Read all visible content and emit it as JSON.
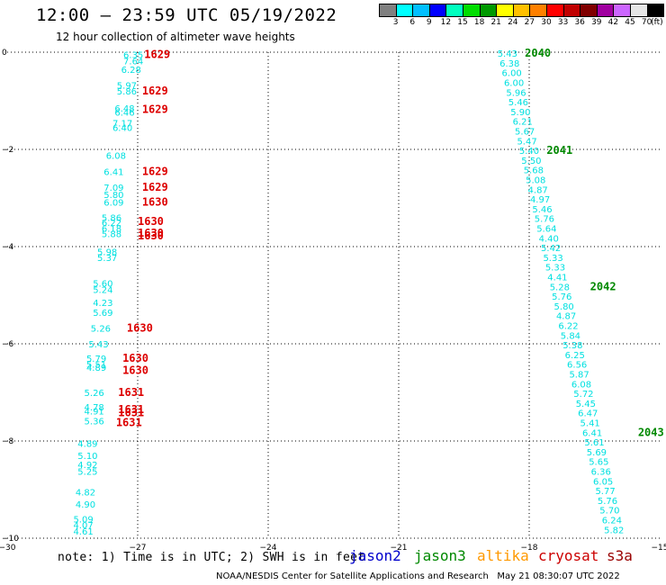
{
  "header": {
    "title": "12:00 – 23:59 UTC 05/19/2022",
    "subtitle": "12 hour collection of altimeter wave heights"
  },
  "colorbar": {
    "colors": [
      "#808080",
      "#00ffff",
      "#00bfff",
      "#0000ff",
      "#00ffbf",
      "#00dd00",
      "#009900",
      "#ffff00",
      "#ffc000",
      "#ff8000",
      "#ff0000",
      "#c00000",
      "#800000",
      "#a000a0",
      "#cc66ff",
      "#e6e6e6",
      "#000000"
    ],
    "labels": [
      "3",
      "6",
      "9",
      "12",
      "15",
      "18",
      "21",
      "24",
      "27",
      "30",
      "33",
      "36",
      "39",
      "42",
      "45",
      "70",
      "(ft)"
    ]
  },
  "axes": {
    "x_ticks": [
      "−30",
      "−27",
      "−24",
      "−21",
      "−18",
      "−15"
    ],
    "y_ticks": [
      "0",
      "−2",
      "−4",
      "−6",
      "−8",
      "−10"
    ],
    "xlim": [
      -30,
      -15
    ],
    "ylim": [
      -10,
      0
    ]
  },
  "tracks": [
    {
      "satellite": "cryosat",
      "color": "#00e0e0",
      "points": [
        {
          "lon": -27.1,
          "lat": -0.05,
          "swh": "6.35"
        },
        {
          "lon": -27.1,
          "lat": -0.18,
          "swh": "7.64"
        },
        {
          "lon": -27.15,
          "lat": -0.35,
          "swh": "6.28"
        },
        {
          "lon": -27.25,
          "lat": -0.68,
          "swh": "5.97"
        },
        {
          "lon": -27.25,
          "lat": -0.8,
          "swh": "5.86"
        },
        {
          "lon": -27.3,
          "lat": -1.15,
          "swh": "6.48"
        },
        {
          "lon": -27.3,
          "lat": -1.23,
          "swh": "6.46"
        },
        {
          "lon": -27.35,
          "lat": -1.45,
          "swh": "7.17"
        },
        {
          "lon": -27.35,
          "lat": -1.55,
          "swh": "6.40"
        },
        {
          "lon": -27.5,
          "lat": -2.12,
          "swh": "6.08"
        },
        {
          "lon": -27.55,
          "lat": -2.45,
          "swh": "6.41"
        },
        {
          "lon": -27.55,
          "lat": -2.78,
          "swh": "7.09"
        },
        {
          "lon": -27.55,
          "lat": -2.93,
          "swh": "5.80"
        },
        {
          "lon": -27.55,
          "lat": -3.08,
          "swh": "6.09"
        },
        {
          "lon": -27.6,
          "lat": -3.4,
          "swh": "5.86"
        },
        {
          "lon": -27.6,
          "lat": -3.5,
          "swh": "6.22"
        },
        {
          "lon": -27.6,
          "lat": -3.62,
          "swh": "6.18"
        },
        {
          "lon": -27.6,
          "lat": -3.73,
          "swh": "5.88"
        },
        {
          "lon": -27.7,
          "lat": -4.1,
          "swh": "5.98"
        },
        {
          "lon": -27.7,
          "lat": -4.22,
          "swh": "5.37"
        },
        {
          "lon": -27.8,
          "lat": -4.75,
          "swh": "5.60"
        },
        {
          "lon": -27.8,
          "lat": -4.88,
          "swh": "5.24"
        },
        {
          "lon": -27.8,
          "lat": -5.15,
          "swh": "4.23"
        },
        {
          "lon": -27.8,
          "lat": -5.35,
          "swh": "5.69"
        },
        {
          "lon": -27.85,
          "lat": -5.68,
          "swh": "5.26"
        },
        {
          "lon": -27.9,
          "lat": -6.0,
          "swh": "5.43"
        },
        {
          "lon": -27.95,
          "lat": -6.3,
          "swh": "5.79"
        },
        {
          "lon": -27.95,
          "lat": -6.42,
          "swh": "5.51"
        },
        {
          "lon": -27.95,
          "lat": -6.48,
          "swh": "4.89"
        },
        {
          "lon": -28.0,
          "lat": -7.0,
          "swh": "5.26"
        },
        {
          "lon": -28.0,
          "lat": -7.3,
          "swh": "4.78"
        },
        {
          "lon": -28.0,
          "lat": -7.38,
          "swh": "4.91"
        },
        {
          "lon": -28.0,
          "lat": -7.58,
          "swh": "5.36"
        },
        {
          "lon": -28.15,
          "lat": -8.05,
          "swh": "4.89"
        },
        {
          "lon": -28.15,
          "lat": -8.3,
          "swh": "5.10"
        },
        {
          "lon": -28.15,
          "lat": -8.48,
          "swh": "4.92"
        },
        {
          "lon": -28.15,
          "lat": -8.62,
          "swh": "5.25"
        },
        {
          "lon": -28.2,
          "lat": -9.05,
          "swh": "4.82"
        },
        {
          "lon": -28.2,
          "lat": -9.3,
          "swh": "4.90"
        },
        {
          "lon": -28.25,
          "lat": -9.6,
          "swh": "5.09"
        },
        {
          "lon": -28.25,
          "lat": -9.72,
          "swh": "4.07"
        },
        {
          "lon": -28.25,
          "lat": -9.85,
          "swh": "4.61"
        }
      ],
      "time_labels": [
        {
          "lon": -26.85,
          "lat": -0.05,
          "text": "1629"
        },
        {
          "lon": -26.9,
          "lat": -0.8,
          "text": "1629"
        },
        {
          "lon": -26.9,
          "lat": -1.18,
          "text": "1629"
        },
        {
          "lon": -26.9,
          "lat": -2.45,
          "text": "1629"
        },
        {
          "lon": -26.9,
          "lat": -2.78,
          "text": "1629"
        },
        {
          "lon": -26.9,
          "lat": -3.08,
          "text": "1630"
        },
        {
          "lon": -27.0,
          "lat": -3.48,
          "text": "1630"
        },
        {
          "lon": -27.0,
          "lat": -3.72,
          "text": "1630"
        },
        {
          "lon": -27.0,
          "lat": -3.78,
          "text": "1630"
        },
        {
          "lon": -27.25,
          "lat": -5.68,
          "text": "1630"
        },
        {
          "lon": -27.35,
          "lat": -6.3,
          "text": "1630"
        },
        {
          "lon": -27.35,
          "lat": -6.55,
          "text": "1630"
        },
        {
          "lon": -27.45,
          "lat": -7.0,
          "text": "1631"
        },
        {
          "lon": -27.45,
          "lat": -7.35,
          "text": "1631"
        },
        {
          "lon": -27.45,
          "lat": -7.42,
          "text": "1631"
        },
        {
          "lon": -27.5,
          "lat": -7.62,
          "text": "1631"
        }
      ]
    },
    {
      "satellite": "jason3",
      "color": "#00e0e0",
      "points": [
        {
          "lon": -18.5,
          "lat": -0.02,
          "swh": "5.43"
        },
        {
          "lon": -18.45,
          "lat": -0.22,
          "swh": "6.38"
        },
        {
          "lon": -18.4,
          "lat": -0.42,
          "swh": "6.00"
        },
        {
          "lon": -18.35,
          "lat": -0.62,
          "swh": "6.00"
        },
        {
          "lon": -18.3,
          "lat": -0.82,
          "swh": "5.96"
        },
        {
          "lon": -18.25,
          "lat": -1.02,
          "swh": "5.46"
        },
        {
          "lon": -18.2,
          "lat": -1.22,
          "swh": "5.90"
        },
        {
          "lon": -18.15,
          "lat": -1.42,
          "swh": "6.21"
        },
        {
          "lon": -18.1,
          "lat": -1.62,
          "swh": "5.67"
        },
        {
          "lon": -18.05,
          "lat": -1.82,
          "swh": "5.47"
        },
        {
          "lon": -18.0,
          "lat": -2.02,
          "swh": "5.40"
        },
        {
          "lon": -17.95,
          "lat": -2.22,
          "swh": "5.50"
        },
        {
          "lon": -17.9,
          "lat": -2.42,
          "swh": "5.68"
        },
        {
          "lon": -17.85,
          "lat": -2.62,
          "swh": "5.08"
        },
        {
          "lon": -17.8,
          "lat": -2.82,
          "swh": "4.87"
        },
        {
          "lon": -17.75,
          "lat": -3.02,
          "swh": "4.97"
        },
        {
          "lon": -17.7,
          "lat": -3.22,
          "swh": "5.46"
        },
        {
          "lon": -17.65,
          "lat": -3.42,
          "swh": "5.76"
        },
        {
          "lon": -17.6,
          "lat": -3.62,
          "swh": "5.64"
        },
        {
          "lon": -17.55,
          "lat": -3.82,
          "swh": "4.40"
        },
        {
          "lon": -17.5,
          "lat": -4.02,
          "swh": "5.42"
        },
        {
          "lon": -17.45,
          "lat": -4.22,
          "swh": "5.33"
        },
        {
          "lon": -17.4,
          "lat": -4.42,
          "swh": "5.33"
        },
        {
          "lon": -17.35,
          "lat": -4.62,
          "swh": "4.41"
        },
        {
          "lon": -17.3,
          "lat": -4.82,
          "swh": "5.28"
        },
        {
          "lon": -17.25,
          "lat": -5.02,
          "swh": "5.76"
        },
        {
          "lon": -17.2,
          "lat": -5.22,
          "swh": "5.80"
        },
        {
          "lon": -17.15,
          "lat": -5.42,
          "swh": "4.87"
        },
        {
          "lon": -17.1,
          "lat": -5.62,
          "swh": "6.22"
        },
        {
          "lon": -17.05,
          "lat": -5.82,
          "swh": "5.84"
        },
        {
          "lon": -17.0,
          "lat": -6.02,
          "swh": "5.38"
        },
        {
          "lon": -16.95,
          "lat": -6.22,
          "swh": "6.25"
        },
        {
          "lon": -16.9,
          "lat": -6.42,
          "swh": "6.56"
        },
        {
          "lon": -16.85,
          "lat": -6.62,
          "swh": "5.87"
        },
        {
          "lon": -16.8,
          "lat": -6.82,
          "swh": "6.08"
        },
        {
          "lon": -16.75,
          "lat": -7.02,
          "swh": "5.72"
        },
        {
          "lon": -16.7,
          "lat": -7.22,
          "swh": "5.45"
        },
        {
          "lon": -16.65,
          "lat": -7.42,
          "swh": "6.47"
        },
        {
          "lon": -16.6,
          "lat": -7.62,
          "swh": "5.41"
        },
        {
          "lon": -16.55,
          "lat": -7.82,
          "swh": "6.41"
        },
        {
          "lon": -16.5,
          "lat": -8.02,
          "swh": "5.61"
        },
        {
          "lon": -16.45,
          "lat": -8.22,
          "swh": "5.69"
        },
        {
          "lon": -16.4,
          "lat": -8.42,
          "swh": "5.65"
        },
        {
          "lon": -16.35,
          "lat": -8.62,
          "swh": "6.36"
        },
        {
          "lon": -16.3,
          "lat": -8.82,
          "swh": "6.05"
        },
        {
          "lon": -16.25,
          "lat": -9.02,
          "swh": "5.77"
        },
        {
          "lon": -16.2,
          "lat": -9.22,
          "swh": "5.76"
        },
        {
          "lon": -16.15,
          "lat": -9.42,
          "swh": "5.70"
        },
        {
          "lon": -16.1,
          "lat": -9.62,
          "swh": "6.24"
        },
        {
          "lon": -16.05,
          "lat": -9.82,
          "swh": "5.82"
        }
      ],
      "time_labels": [
        {
          "lon": -18.1,
          "lat": -0.02,
          "text": "2040"
        },
        {
          "lon": -17.6,
          "lat": -2.02,
          "text": "2041"
        },
        {
          "lon": -16.6,
          "lat": -4.82,
          "text": "2042"
        },
        {
          "lon": -15.5,
          "lat": -7.82,
          "text": "2043"
        }
      ]
    }
  ],
  "footer": {
    "note": "note: 1) Time is in UTC; 2) SWH is in feet",
    "legend": [
      {
        "name": "jason2",
        "color": "#0000cc"
      },
      {
        "name": "jason3",
        "color": "#008800"
      },
      {
        "name": "altika",
        "color": "#ff9900"
      },
      {
        "name": "cryosat",
        "color": "#cc0000"
      },
      {
        "name": "s3a",
        "color": "#990000"
      }
    ],
    "credit": "NOAA/NESDIS Center for Satellite Applications and Research   May 21 08:30:07 UTC 2022"
  }
}
